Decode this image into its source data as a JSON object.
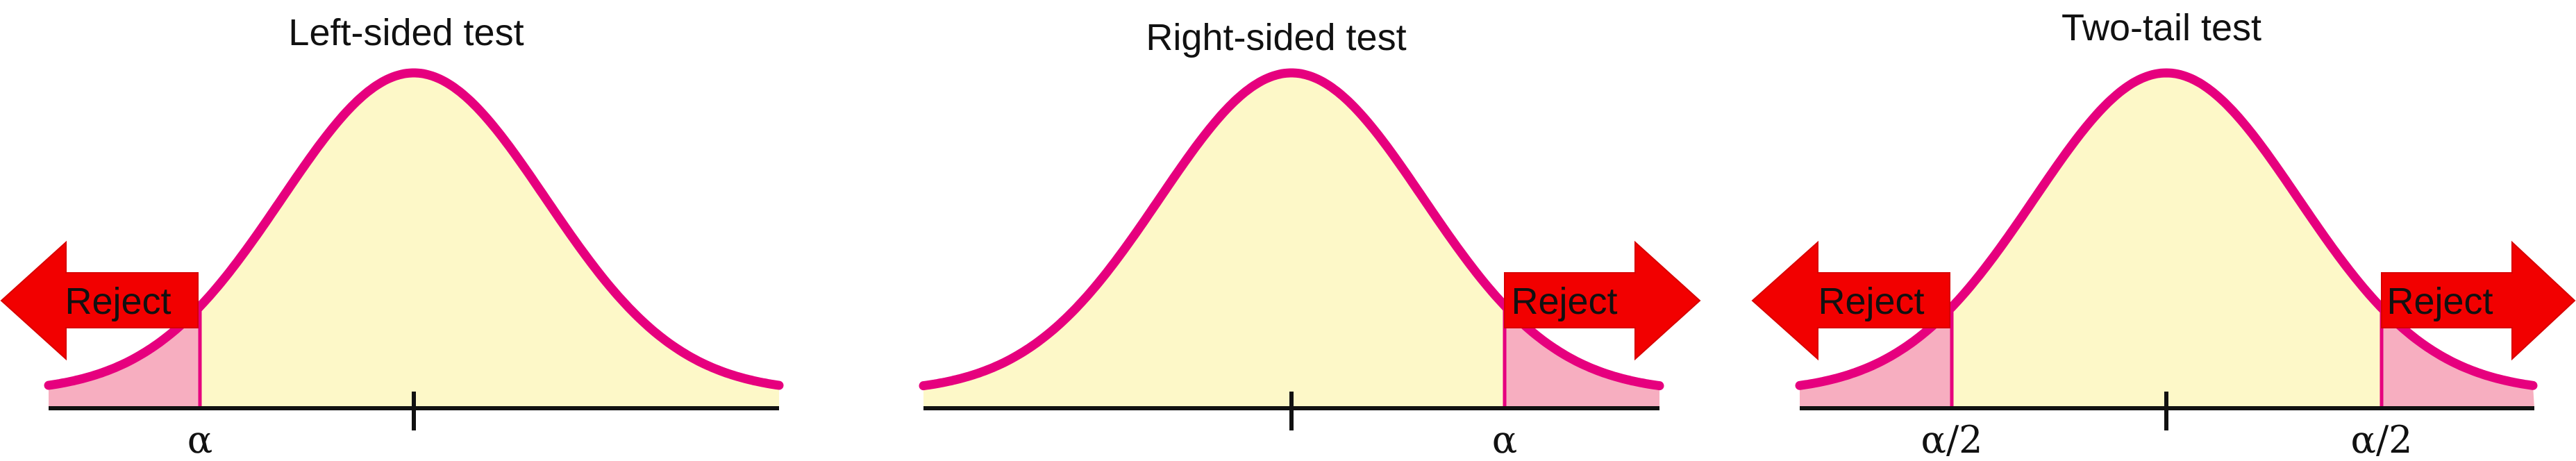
{
  "colors": {
    "curve": "#e6007e",
    "fill_body": "#fdf8c8",
    "fill_tail": "#f7aec0",
    "arrow": "#f20000",
    "axis": "#111111"
  },
  "panels": [
    {
      "title": "Left-sided test",
      "tails": [
        "left"
      ],
      "reject_labels": [
        "Reject"
      ],
      "critical_labels": [
        "α"
      ]
    },
    {
      "title": "Right-sided test",
      "tails": [
        "right"
      ],
      "reject_labels": [
        "Reject"
      ],
      "critical_labels": [
        "α"
      ]
    },
    {
      "title": "Two-tail test",
      "tails": [
        "left",
        "right"
      ],
      "reject_labels": [
        "Reject",
        "Reject"
      ],
      "critical_labels": [
        "α/2",
        "α/2"
      ]
    }
  ]
}
